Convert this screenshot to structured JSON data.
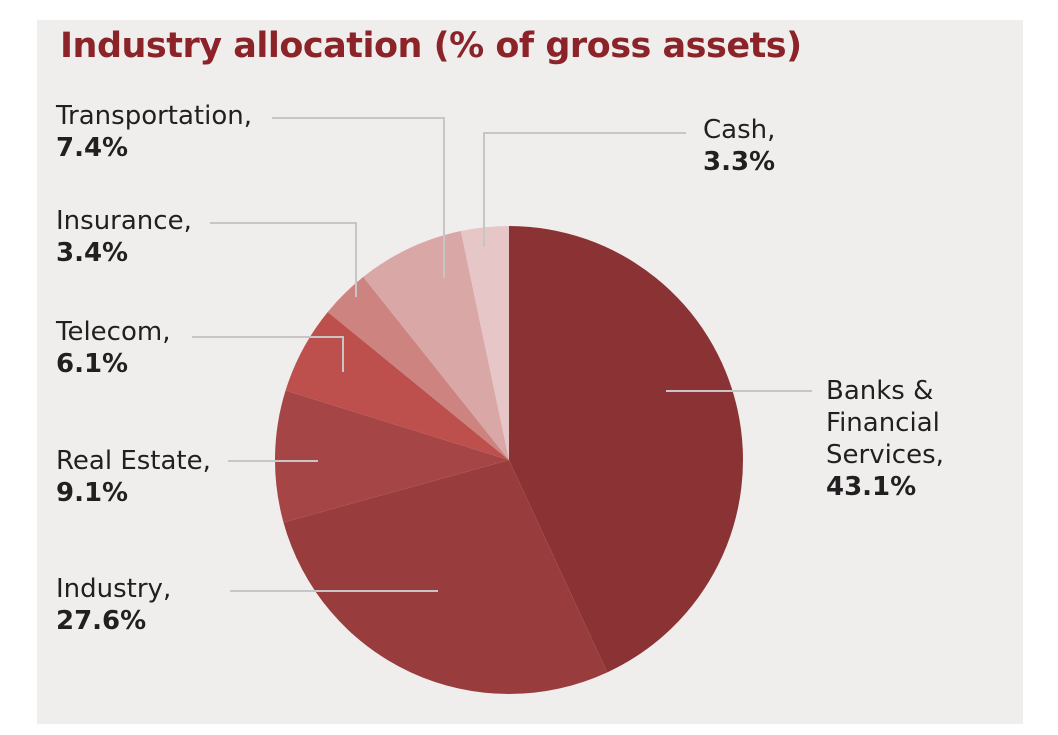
{
  "title": "Industry allocation (% of gross assets)",
  "chart_data": {
    "type": "pie",
    "title": "Industry allocation (% of gross assets)",
    "unit": "%",
    "start": "12 o'clock",
    "direction": "clockwise",
    "slices": [
      {
        "name": "Banks & Financial Services",
        "label_lines": [
          "Banks &",
          "Financial",
          "Services,"
        ],
        "value": 43.1,
        "value_label": "43.1%",
        "color": "#8b3334"
      },
      {
        "name": "Industry",
        "label_lines": [
          "Industry,"
        ],
        "value": 27.6,
        "value_label": "27.6%",
        "color": "#993c3e"
      },
      {
        "name": "Real Estate",
        "label_lines": [
          "Real Estate,"
        ],
        "value": 9.1,
        "value_label": "9.1%",
        "color": "#a54546"
      },
      {
        "name": "Telecom",
        "label_lines": [
          "Telecom,"
        ],
        "value": 6.1,
        "value_label": "6.1%",
        "color": "#bd4f4d"
      },
      {
        "name": "Insurance",
        "label_lines": [
          "Insurance,"
        ],
        "value": 3.4,
        "value_label": "3.4%",
        "color": "#cd8380"
      },
      {
        "name": "Transportation",
        "label_lines": [
          "Transportation,"
        ],
        "value": 7.4,
        "value_label": "7.4%",
        "color": "#d9a7a6"
      },
      {
        "name": "Cash",
        "label_lines": [
          "Cash,"
        ],
        "value": 3.3,
        "value_label": "3.3%",
        "color": "#e6c6c6"
      }
    ]
  }
}
